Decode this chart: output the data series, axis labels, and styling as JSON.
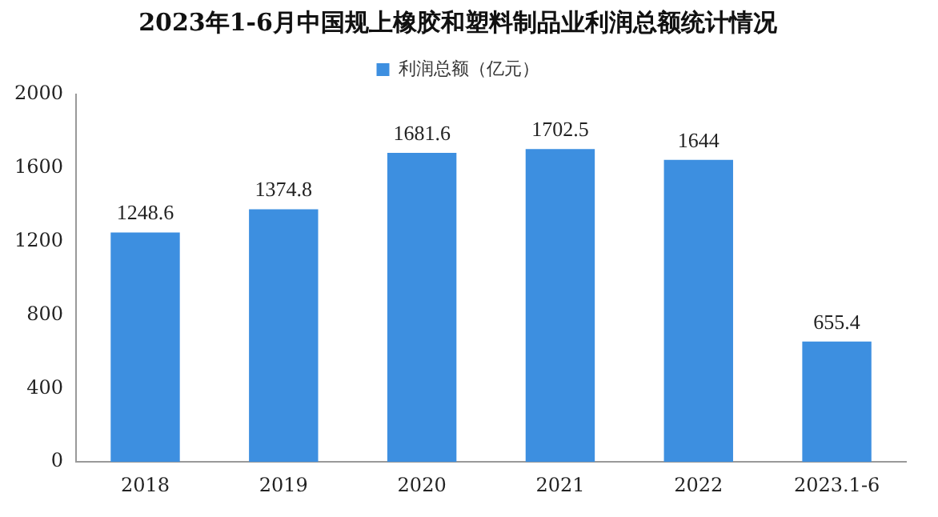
{
  "chart_data": {
    "type": "bar",
    "title": "2023年1-6月中国规上橡胶和塑料制品业利润总额统计情况",
    "categories": [
      "2018",
      "2019",
      "2020",
      "2021",
      "2022",
      "2023.1-6"
    ],
    "series": [
      {
        "name": "利润总额（亿元）",
        "color": "#3d8fe0",
        "values": [
          1248.6,
          1374.8,
          1681.6,
          1702.5,
          1644,
          655.4
        ]
      }
    ],
    "ylim": [
      0,
      2000
    ],
    "yticks": [
      0,
      400,
      800,
      1200,
      1600,
      2000
    ],
    "grid": false,
    "legend": "top",
    "data_labels": true
  }
}
